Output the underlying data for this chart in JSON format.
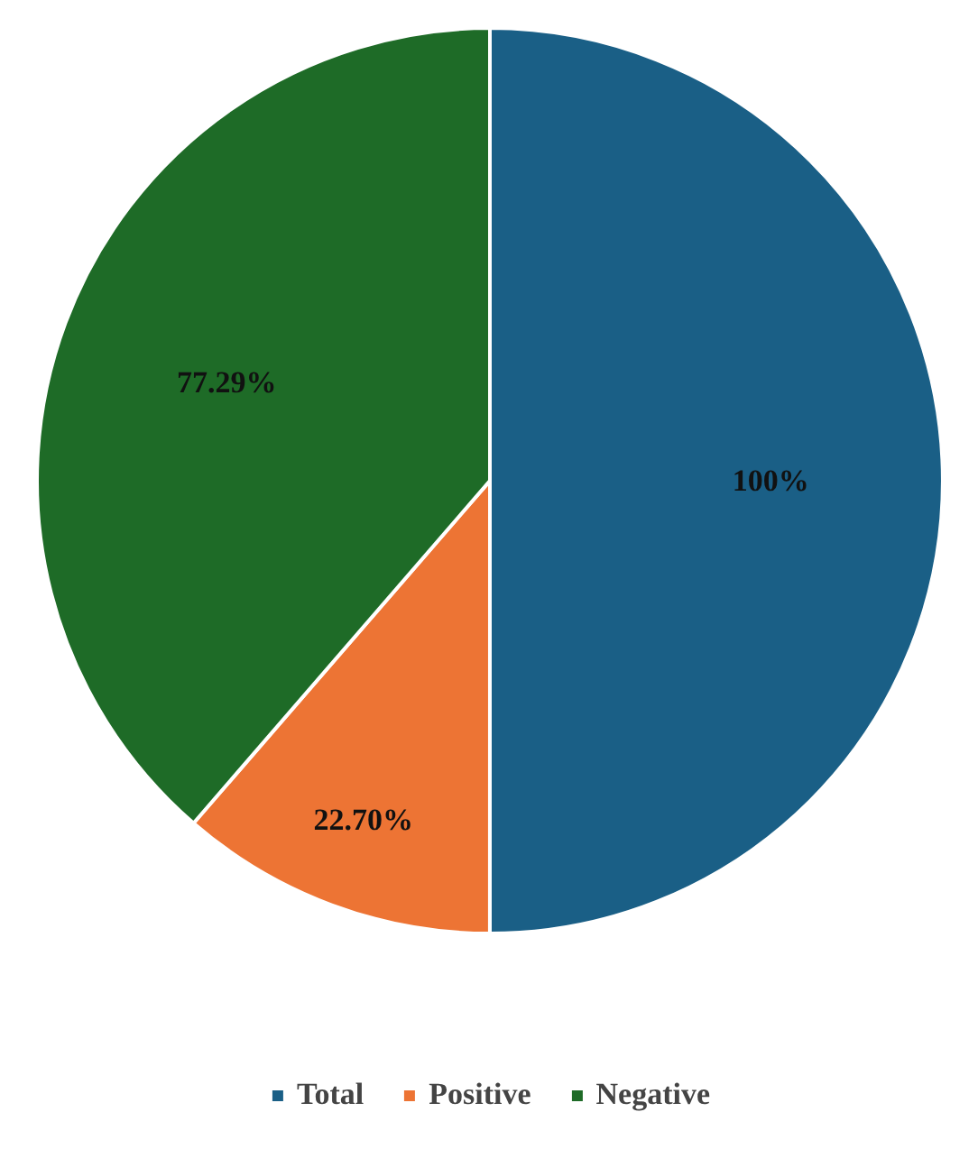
{
  "chart_data": {
    "type": "pie",
    "categories": [
      "Total",
      "Positive",
      "Negative"
    ],
    "values": [
      100,
      22.7,
      77.29
    ],
    "colors": [
      "#1a5f86",
      "#ed7434",
      "#1e6b27"
    ],
    "value_labels": [
      "100%",
      "22.70%",
      "77.29%"
    ],
    "legend": "bottom"
  }
}
